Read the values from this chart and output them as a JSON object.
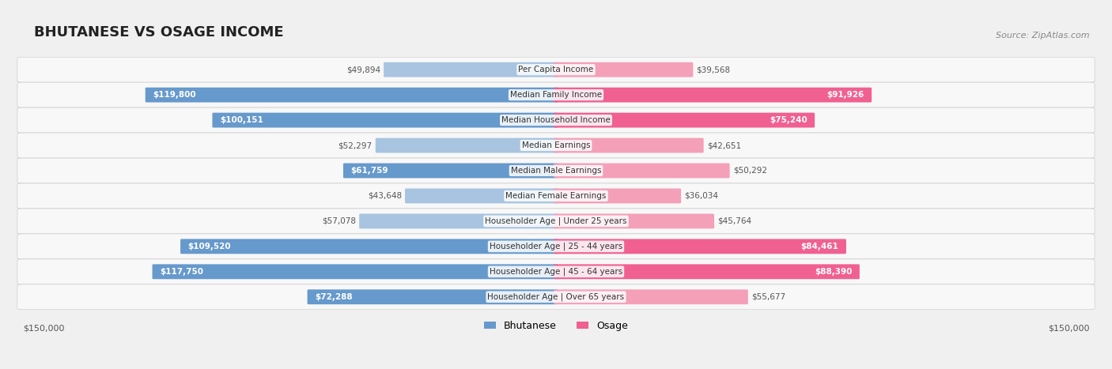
{
  "title": "BHUTANESE VS OSAGE INCOME",
  "source": "Source: ZipAtlas.com",
  "categories": [
    "Per Capita Income",
    "Median Family Income",
    "Median Household Income",
    "Median Earnings",
    "Median Male Earnings",
    "Median Female Earnings",
    "Householder Age | Under 25 years",
    "Householder Age | 25 - 44 years",
    "Householder Age | 45 - 64 years",
    "Householder Age | Over 65 years"
  ],
  "bhutanese_values": [
    49894,
    119800,
    100151,
    52297,
    61759,
    43648,
    57078,
    109520,
    117750,
    72288
  ],
  "osage_values": [
    39568,
    91926,
    75240,
    42651,
    50292,
    36034,
    45764,
    84461,
    88390,
    55677
  ],
  "bhutanese_labels": [
    "$49,894",
    "$119,800",
    "$100,151",
    "$52,297",
    "$61,759",
    "$43,648",
    "$57,078",
    "$109,520",
    "$117,750",
    "$72,288"
  ],
  "osage_labels": [
    "$39,568",
    "$91,926",
    "$75,240",
    "$42,651",
    "$50,292",
    "$36,034",
    "$45,764",
    "$84,461",
    "$88,390",
    "$55,677"
  ],
  "max_val": 150000,
  "bhutanese_color_light": "#a8c4e0",
  "bhutanese_color_dark": "#6699cc",
  "osage_color_light": "#f4a0b8",
  "osage_color_dark": "#f06090",
  "background_color": "#f0f0f0",
  "row_bg_color": "#f8f8f8",
  "legend_bhutanese": "Bhutanese",
  "legend_osage": "Osage",
  "xlabel_left": "$150,000",
  "xlabel_right": "$150,000"
}
